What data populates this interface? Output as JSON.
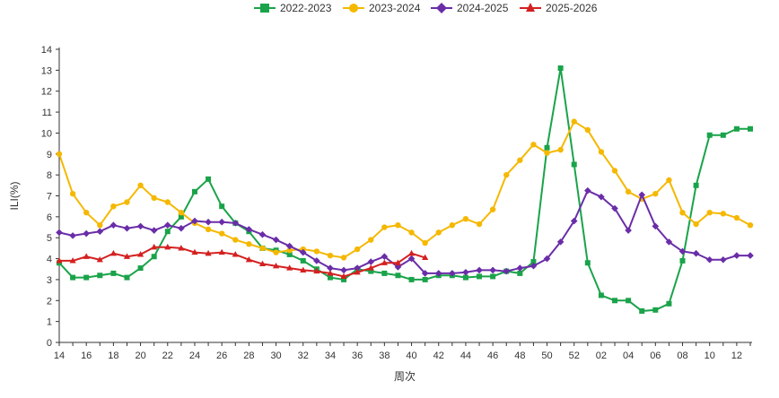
{
  "chart_data": {
    "type": "line",
    "title": "",
    "xlabel": "周次",
    "ylabel": "ILI(%)",
    "ylim": [
      0,
      14
    ],
    "yticks": [
      0,
      1,
      2,
      3,
      4,
      5,
      6,
      7,
      8,
      9,
      10,
      11,
      12,
      13,
      14
    ],
    "grid": false,
    "legend_position": "top-center",
    "x": [
      "14",
      "15",
      "16",
      "17",
      "18",
      "19",
      "20",
      "21",
      "22",
      "23",
      "24",
      "25",
      "26",
      "27",
      "28",
      "29",
      "30",
      "31",
      "32",
      "33",
      "34",
      "35",
      "36",
      "37",
      "38",
      "39",
      "40",
      "41",
      "42",
      "43",
      "44",
      "45",
      "46",
      "47",
      "48",
      "49",
      "50",
      "51",
      "52",
      "01",
      "02",
      "03",
      "04",
      "05",
      "06",
      "07",
      "08",
      "09",
      "10",
      "11",
      "12",
      "13"
    ],
    "x_tick_labels": [
      "14",
      "16",
      "18",
      "20",
      "22",
      "24",
      "26",
      "28",
      "30",
      "32",
      "34",
      "36",
      "38",
      "40",
      "42",
      "44",
      "46",
      "48",
      "50",
      "52",
      "02",
      "04",
      "06",
      "08",
      "10",
      "12"
    ],
    "series": [
      {
        "name": "2022-2023",
        "color": "#1aa34a",
        "marker": "square",
        "values": [
          3.8,
          3.1,
          3.1,
          3.2,
          3.3,
          3.1,
          3.55,
          4.1,
          5.3,
          6.0,
          7.2,
          7.8,
          6.5,
          5.7,
          5.3,
          4.5,
          4.4,
          4.2,
          3.9,
          3.5,
          3.1,
          3.0,
          3.5,
          3.4,
          3.3,
          3.2,
          3.0,
          3.0,
          3.2,
          3.2,
          3.1,
          3.15,
          3.15,
          3.4,
          3.3,
          3.85,
          9.3,
          13.1,
          8.5,
          3.8,
          2.25,
          2.0,
          2.0,
          1.5,
          1.55,
          1.85,
          3.9,
          7.5,
          9.9,
          9.9,
          10.2,
          10.2
        ]
      },
      {
        "name": "2023-2024",
        "color": "#f5b800",
        "marker": "circle",
        "values": [
          9.0,
          7.1,
          6.2,
          5.6,
          6.5,
          6.7,
          7.5,
          6.9,
          6.7,
          6.2,
          5.7,
          5.4,
          5.2,
          4.9,
          4.7,
          4.5,
          4.3,
          4.4,
          4.45,
          4.35,
          4.15,
          4.05,
          4.45,
          4.9,
          5.5,
          5.6,
          5.25,
          4.75,
          5.25,
          5.6,
          5.9,
          5.65,
          6.35,
          8.0,
          8.7,
          9.45,
          9.05,
          9.2,
          10.55,
          10.15,
          9.1,
          8.2,
          7.2,
          6.85,
          7.1,
          7.75,
          6.2,
          5.65,
          6.2,
          6.15,
          5.95,
          5.6
        ]
      },
      {
        "name": "2024-2025",
        "color": "#6a2da8",
        "marker": "diamond",
        "values": [
          5.25,
          5.1,
          5.2,
          5.3,
          5.6,
          5.45,
          5.55,
          5.35,
          5.6,
          5.45,
          5.8,
          5.75,
          5.75,
          5.7,
          5.4,
          5.15,
          4.9,
          4.6,
          4.3,
          3.9,
          3.55,
          3.45,
          3.55,
          3.85,
          4.1,
          3.6,
          4.0,
          3.3,
          3.3,
          3.3,
          3.35,
          3.45,
          3.45,
          3.4,
          3.55,
          3.65,
          4.0,
          4.8,
          5.8,
          7.25,
          6.95,
          6.4,
          5.35,
          7.05,
          5.55,
          4.8,
          4.35,
          4.25,
          3.95,
          3.95,
          4.15,
          4.15
        ]
      },
      {
        "name": "2025-2026",
        "color": "#d42020",
        "marker": "triangle",
        "values": [
          3.9,
          3.9,
          4.1,
          3.95,
          4.25,
          4.1,
          4.2,
          4.55,
          4.55,
          4.5,
          4.3,
          4.25,
          4.3,
          4.2,
          3.95,
          3.75,
          3.65,
          3.55,
          3.45,
          3.4,
          3.3,
          3.15,
          3.35,
          3.55,
          3.8,
          3.8,
          4.25,
          4.05,
          null,
          null,
          null,
          null,
          null,
          null,
          null,
          null,
          null,
          null,
          null,
          null,
          null,
          null,
          null,
          null,
          null,
          null,
          null,
          null,
          null,
          null,
          null,
          null
        ]
      }
    ]
  }
}
